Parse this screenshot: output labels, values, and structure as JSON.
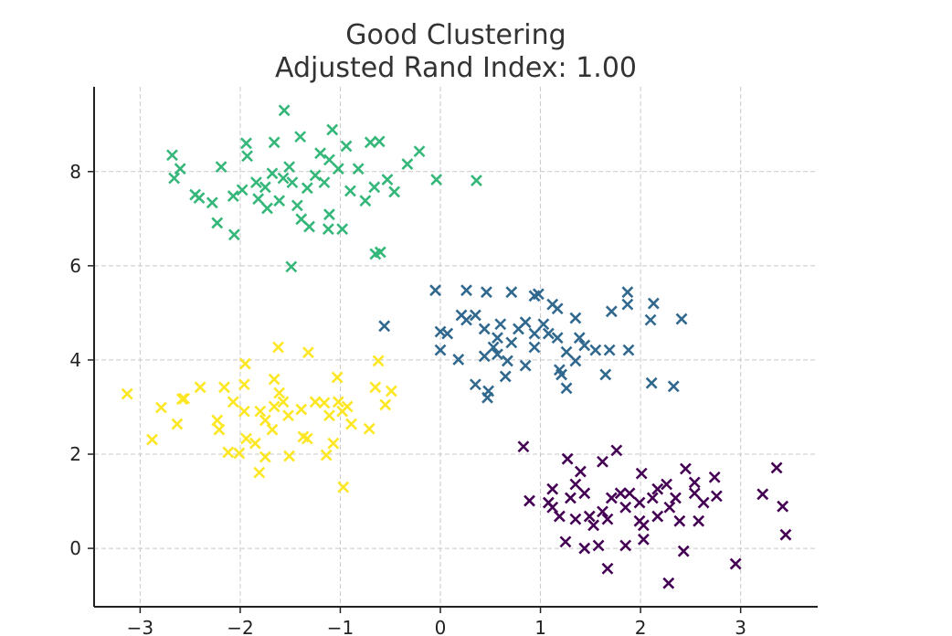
{
  "chart_data": {
    "type": "scatter",
    "title": "Good Clustering",
    "subtitle": "Adjusted Rand Index: 1.00",
    "xlabel": "",
    "ylabel": "",
    "xlim": [
      -3.46,
      3.77
    ],
    "ylim": [
      -1.24,
      9.8
    ],
    "xticks": [
      -3,
      -2,
      -1,
      0,
      1,
      2,
      3
    ],
    "xtick_labels": [
      "−3",
      "−2",
      "−1",
      "0",
      "1",
      "2",
      "3"
    ],
    "yticks": [
      0,
      2,
      4,
      6,
      8
    ],
    "ytick_labels": [
      "0",
      "2",
      "4",
      "6",
      "8"
    ],
    "grid": true,
    "marker": "x",
    "series": [
      {
        "color": "#35b779",
        "points": [
          [
            -2.68,
            8.35
          ],
          [
            -2.66,
            7.86
          ],
          [
            -2.6,
            8.06
          ],
          [
            -2.45,
            7.51
          ],
          [
            -2.19,
            8.1
          ],
          [
            -2.23,
            6.91
          ],
          [
            -2.06,
            6.66
          ],
          [
            -2.07,
            7.48
          ],
          [
            -1.94,
            8.6
          ],
          [
            -1.93,
            8.33
          ],
          [
            -1.66,
            8.62
          ],
          [
            -1.56,
            9.3
          ],
          [
            -1.49,
            5.98
          ],
          [
            -1.4,
            8.74
          ],
          [
            -1.08,
            8.89
          ],
          [
            -1.12,
            6.78
          ],
          [
            -0.98,
            6.78
          ],
          [
            -0.9,
            7.59
          ],
          [
            -0.7,
            8.62
          ],
          [
            -0.65,
            6.25
          ],
          [
            -0.6,
            6.29
          ],
          [
            -0.33,
            8.16
          ],
          [
            -0.21,
            8.43
          ],
          [
            -0.04,
            7.83
          ],
          [
            0.36,
            7.81
          ],
          [
            -0.46,
            7.57
          ],
          [
            -0.53,
            7.83
          ],
          [
            -0.66,
            7.67
          ],
          [
            -0.82,
            8.06
          ],
          [
            -0.94,
            8.54
          ],
          [
            -1.2,
            8.39
          ],
          [
            -1.25,
            7.92
          ],
          [
            -1.33,
            7.65
          ],
          [
            -1.48,
            7.77
          ],
          [
            -1.57,
            7.86
          ],
          [
            -1.68,
            7.96
          ],
          [
            -1.75,
            7.67
          ],
          [
            -1.82,
            7.42
          ],
          [
            -1.73,
            7.22
          ],
          [
            -1.61,
            7.38
          ],
          [
            -1.43,
            7.28
          ],
          [
            -1.39,
            6.99
          ],
          [
            -1.11,
            7.09
          ],
          [
            -1.31,
            6.83
          ],
          [
            -1.98,
            7.61
          ],
          [
            -2.28,
            7.34
          ],
          [
            -2.41,
            7.44
          ],
          [
            -1.16,
            7.77
          ],
          [
            -1.02,
            8.06
          ],
          [
            -1.11,
            8.25
          ],
          [
            -1.84,
            7.77
          ],
          [
            -0.75,
            7.38
          ],
          [
            -0.61,
            8.64
          ],
          [
            -1.51,
            8.1
          ]
        ]
      },
      {
        "color": "#31688e",
        "points": [
          [
            -0.05,
            5.48
          ],
          [
            0.26,
            5.48
          ],
          [
            0.46,
            5.44
          ],
          [
            0.71,
            5.44
          ],
          [
            0.94,
            5.36
          ],
          [
            0.98,
            5.4
          ],
          [
            -0.56,
            4.72
          ],
          [
            0,
            4.6
          ],
          [
            0,
            4.21
          ],
          [
            0.18,
            4.01
          ],
          [
            0.35,
            3.48
          ],
          [
            0.47,
            3.2
          ],
          [
            0.48,
            3.34
          ],
          [
            0.65,
            3.65
          ],
          [
            1.26,
            3.4
          ],
          [
            1.65,
            3.69
          ],
          [
            2.11,
            3.51
          ],
          [
            2.33,
            3.44
          ],
          [
            2.41,
            4.87
          ],
          [
            2.1,
            4.85
          ],
          [
            2.13,
            5.2
          ],
          [
            1.87,
            5.44
          ],
          [
            1.87,
            5.18
          ],
          [
            1.71,
            5.03
          ],
          [
            1.88,
            4.21
          ],
          [
            1.69,
            4.21
          ],
          [
            1.55,
            4.21
          ],
          [
            1.35,
            4.89
          ],
          [
            1.12,
            5.18
          ],
          [
            1.17,
            5.09
          ],
          [
            1.03,
            4.76
          ],
          [
            1.08,
            4.56
          ],
          [
            0.94,
            4.56
          ],
          [
            0.78,
            4.66
          ],
          [
            0.6,
            4.76
          ],
          [
            0.57,
            4.47
          ],
          [
            0.53,
            4.27
          ],
          [
            0.57,
            4.12
          ],
          [
            0.44,
            4.08
          ],
          [
            0.44,
            4.66
          ],
          [
            0.35,
            4.95
          ],
          [
            0.26,
            4.85
          ],
          [
            0.21,
            4.95
          ],
          [
            0.07,
            4.56
          ],
          [
            0.85,
            3.88
          ],
          [
            0.94,
            4.27
          ],
          [
            1.17,
            4.47
          ],
          [
            1.26,
            4.17
          ],
          [
            1.35,
            3.98
          ],
          [
            1.39,
            4.47
          ],
          [
            1.44,
            4.31
          ],
          [
            1.19,
            3.79
          ],
          [
            1.21,
            3.69
          ],
          [
            0.67,
            3.98
          ],
          [
            0.71,
            4.37
          ],
          [
            0.85,
            4.8
          ]
        ]
      },
      {
        "color": "#fde725",
        "points": [
          [
            -3.13,
            3.28
          ],
          [
            -2.88,
            2.31
          ],
          [
            -2.79,
            2.99
          ],
          [
            -2.63,
            2.64
          ],
          [
            -2.58,
            3.17
          ],
          [
            -2.56,
            3.18
          ],
          [
            -2.4,
            3.42
          ],
          [
            -2.16,
            3.42
          ],
          [
            -2.23,
            2.72
          ],
          [
            -2.21,
            2.52
          ],
          [
            -2.12,
            2.04
          ],
          [
            -2.01,
            2.02
          ],
          [
            -1.95,
            3.92
          ],
          [
            -1.96,
            3.48
          ],
          [
            -1.62,
            4.27
          ],
          [
            -1.32,
            4.16
          ],
          [
            -1.03,
            3.63
          ],
          [
            -0.62,
            3.98
          ],
          [
            -0.65,
            3.42
          ],
          [
            -0.49,
            3.34
          ],
          [
            -0.55,
            3.05
          ],
          [
            -0.71,
            2.54
          ],
          [
            -0.97,
            1.3
          ],
          [
            -1.81,
            1.61
          ],
          [
            -1.75,
            1.94
          ],
          [
            -1.51,
            1.96
          ],
          [
            -1.14,
            1.98
          ],
          [
            -1.07,
            2.23
          ],
          [
            -0.89,
            2.64
          ],
          [
            -1.16,
            3.09
          ],
          [
            -1.02,
            3.11
          ],
          [
            -0.98,
            2.91
          ],
          [
            -1.11,
            2.82
          ],
          [
            -1.25,
            3.11
          ],
          [
            -1.33,
            2.33
          ],
          [
            -1.37,
            2.37
          ],
          [
            -1.8,
            2.91
          ],
          [
            -1.75,
            2.72
          ],
          [
            -1.66,
            3.01
          ],
          [
            -1.57,
            3.11
          ],
          [
            -1.52,
            2.82
          ],
          [
            -1.68,
            2.52
          ],
          [
            -1.85,
            2.23
          ],
          [
            -1.94,
            2.33
          ],
          [
            -1.96,
            2.91
          ],
          [
            -2.07,
            3.11
          ],
          [
            -1.66,
            3.59
          ],
          [
            -1.61,
            3.3
          ],
          [
            -1.39,
            2.95
          ],
          [
            -0.93,
            3.01
          ]
        ]
      },
      {
        "color": "#440154",
        "points": [
          [
            0.83,
            2.16
          ],
          [
            0.89,
            1.01
          ],
          [
            1.27,
            1.9
          ],
          [
            1.62,
            1.84
          ],
          [
            1.76,
            2.08
          ],
          [
            1.25,
            0.14
          ],
          [
            1.67,
            -0.43
          ],
          [
            2.28,
            -0.74
          ],
          [
            2.95,
            -0.33
          ],
          [
            2.43,
            -0.06
          ],
          [
            3.22,
            1.15
          ],
          [
            3.36,
            1.71
          ],
          [
            3.42,
            0.89
          ],
          [
            3.45,
            0.29
          ],
          [
            2.74,
            1.51
          ],
          [
            2.76,
            1.11
          ],
          [
            2.45,
            1.69
          ],
          [
            2.29,
            0.87
          ],
          [
            2.01,
            1.59
          ],
          [
            1.44,
            0.0
          ],
          [
            1.58,
            0.06
          ],
          [
            1.85,
            0.06
          ],
          [
            2.03,
            0.19
          ],
          [
            1.99,
            0.58
          ],
          [
            2.39,
            0.58
          ],
          [
            2.58,
            0.58
          ],
          [
            1.08,
            0.97
          ],
          [
            1.12,
            1.26
          ],
          [
            1.35,
            1.36
          ],
          [
            1.44,
            1.17
          ],
          [
            1.3,
            1.07
          ],
          [
            1.19,
            0.68
          ],
          [
            1.35,
            0.62
          ],
          [
            1.49,
            0.68
          ],
          [
            1.62,
            0.78
          ],
          [
            1.71,
            1.07
          ],
          [
            1.8,
            1.17
          ],
          [
            1.85,
            0.87
          ],
          [
            1.99,
            0.97
          ],
          [
            2.12,
            1.07
          ],
          [
            2.17,
            1.26
          ],
          [
            2.26,
            1.36
          ],
          [
            2.35,
            1.07
          ],
          [
            2.54,
            1.17
          ],
          [
            2.63,
            0.97
          ],
          [
            2.17,
            0.68
          ],
          [
            2.03,
            0.49
          ],
          [
            1.67,
            0.62
          ],
          [
            1.53,
            0.49
          ],
          [
            1.12,
            0.87
          ],
          [
            1.4,
            1.63
          ],
          [
            2.54,
            1.4
          ],
          [
            1.89,
            1.17
          ]
        ]
      }
    ]
  }
}
